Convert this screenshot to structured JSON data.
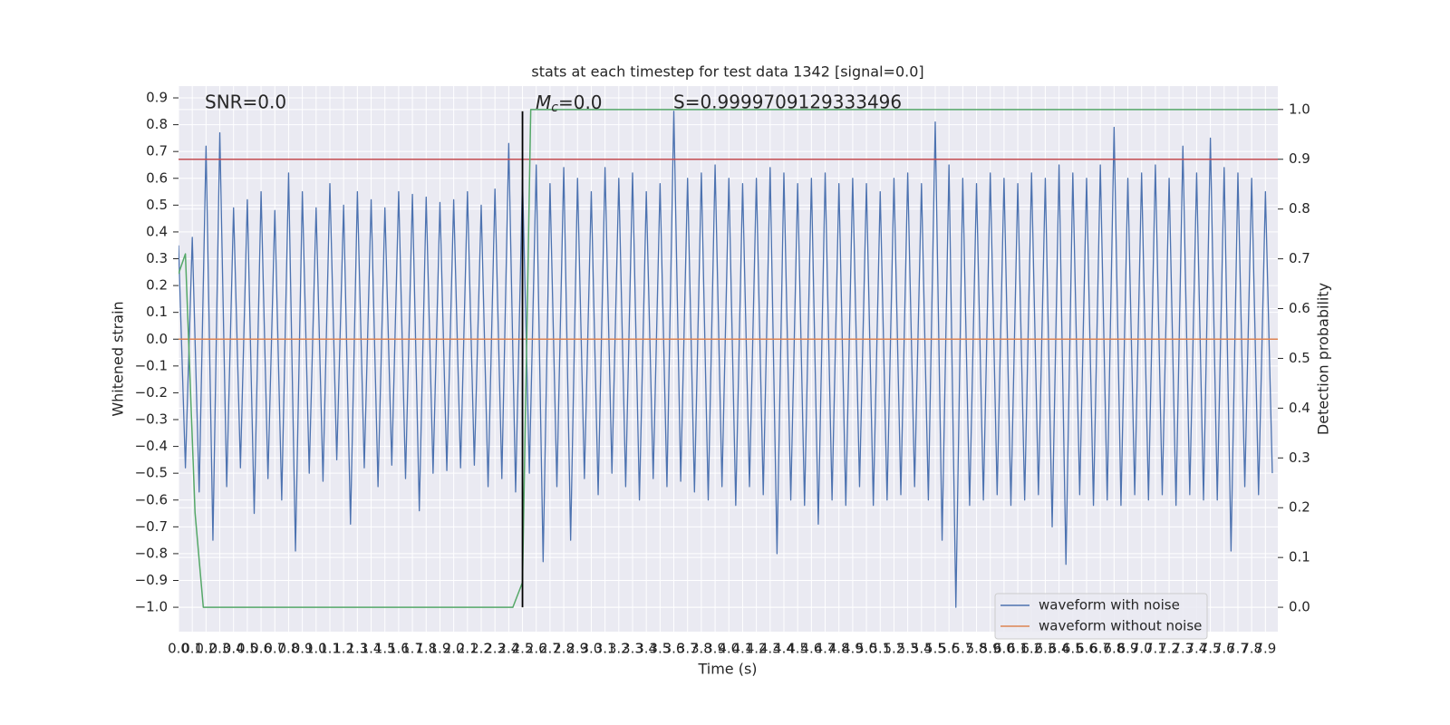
{
  "chart_data": {
    "type": "line",
    "title": "stats at each timestep for test data 1342 [signal=0.0]",
    "xlabel": "Time (s)",
    "ylabel": "Whitened strain",
    "y2label": "Detection probability",
    "annotations": {
      "snr": "SNR=0.0",
      "mc": {
        "symbol": "M",
        "subscript": "c",
        "text": "=0.0"
      },
      "s": "S=0.9999709129333496"
    },
    "xlim": [
      0,
      7.99
    ],
    "ylim": [
      -1.091,
      0.944
    ],
    "y2lim": [
      -0.049,
      1.047
    ],
    "grid": true,
    "legend": "lower right",
    "background": "#eaeaf2",
    "xticks": [
      {
        "value": 0,
        "label": "0.0"
      },
      {
        "value": 0.1,
        "label": "0.1"
      },
      {
        "value": 0.2,
        "label": "0.2"
      },
      {
        "value": 0.3,
        "label": "0.3"
      },
      {
        "value": 0.4,
        "label": "0.4"
      },
      {
        "value": 0.5,
        "label": "0.5"
      },
      {
        "value": 0.6,
        "label": "0.6"
      },
      {
        "value": 0.7,
        "label": "0.7"
      },
      {
        "value": 0.8,
        "label": "0.8"
      },
      {
        "value": 0.9,
        "label": "0.9"
      },
      {
        "value": 1,
        "label": "1.0"
      },
      {
        "value": 1.1,
        "label": "1.1"
      },
      {
        "value": 1.2,
        "label": "1.2"
      },
      {
        "value": 1.3,
        "label": "1.3"
      },
      {
        "value": 1.4,
        "label": "1.4"
      },
      {
        "value": 1.5,
        "label": "1.5"
      },
      {
        "value": 1.6,
        "label": "1.6"
      },
      {
        "value": 1.7,
        "label": "1.7"
      },
      {
        "value": 1.8,
        "label": "1.8"
      },
      {
        "value": 1.9,
        "label": "1.9"
      },
      {
        "value": 2,
        "label": "2.0"
      },
      {
        "value": 2.1,
        "label": "2.1"
      },
      {
        "value": 2.2,
        "label": "2.2"
      },
      {
        "value": 2.3,
        "label": "2.3"
      },
      {
        "value": 2.4,
        "label": "2.4"
      },
      {
        "value": 2.5,
        "label": "2.5"
      },
      {
        "value": 2.6,
        "label": "2.6"
      },
      {
        "value": 2.7,
        "label": "2.7"
      },
      {
        "value": 2.8,
        "label": "2.8"
      },
      {
        "value": 2.9,
        "label": "2.9"
      },
      {
        "value": 3,
        "label": "3.0"
      },
      {
        "value": 3.1,
        "label": "3.1"
      },
      {
        "value": 3.2,
        "label": "3.2"
      },
      {
        "value": 3.3,
        "label": "3.3"
      },
      {
        "value": 3.4,
        "label": "3.4"
      },
      {
        "value": 3.5,
        "label": "3.5"
      },
      {
        "value": 3.6,
        "label": "3.6"
      },
      {
        "value": 3.7,
        "label": "3.7"
      },
      {
        "value": 3.8,
        "label": "3.8"
      },
      {
        "value": 3.9,
        "label": "3.9"
      },
      {
        "value": 4,
        "label": "4.0"
      },
      {
        "value": 4.1,
        "label": "4.1"
      },
      {
        "value": 4.2,
        "label": "4.2"
      },
      {
        "value": 4.3,
        "label": "4.3"
      },
      {
        "value": 4.4,
        "label": "4.4"
      },
      {
        "value": 4.5,
        "label": "4.5"
      },
      {
        "value": 4.6,
        "label": "4.6"
      },
      {
        "value": 4.7,
        "label": "4.7"
      },
      {
        "value": 4.8,
        "label": "4.8"
      },
      {
        "value": 4.9,
        "label": "4.9"
      },
      {
        "value": 5,
        "label": "5.0"
      },
      {
        "value": 5.1,
        "label": "5.1"
      },
      {
        "value": 5.2,
        "label": "5.2"
      },
      {
        "value": 5.3,
        "label": "5.3"
      },
      {
        "value": 5.4,
        "label": "5.4"
      },
      {
        "value": 5.5,
        "label": "5.5"
      },
      {
        "value": 5.6,
        "label": "5.6"
      },
      {
        "value": 5.7,
        "label": "5.7"
      },
      {
        "value": 5.8,
        "label": "5.8"
      },
      {
        "value": 5.9,
        "label": "5.9"
      },
      {
        "value": 6,
        "label": "6.0"
      },
      {
        "value": 6.1,
        "label": "6.1"
      },
      {
        "value": 6.2,
        "label": "6.2"
      },
      {
        "value": 6.3,
        "label": "6.3"
      },
      {
        "value": 6.4,
        "label": "6.4"
      },
      {
        "value": 6.5,
        "label": "6.5"
      },
      {
        "value": 6.6,
        "label": "6.6"
      },
      {
        "value": 6.7,
        "label": "6.7"
      },
      {
        "value": 6.8,
        "label": "6.8"
      },
      {
        "value": 6.9,
        "label": "6.9"
      },
      {
        "value": 7,
        "label": "7.0"
      },
      {
        "value": 7.1,
        "label": "7.1"
      },
      {
        "value": 7.2,
        "label": "7.2"
      },
      {
        "value": 7.3,
        "label": "7.3"
      },
      {
        "value": 7.4,
        "label": "7.4"
      },
      {
        "value": 7.5,
        "label": "7.5"
      },
      {
        "value": 7.6,
        "label": "7.6"
      },
      {
        "value": 7.7,
        "label": "7.7"
      },
      {
        "value": 7.8,
        "label": "7.8"
      },
      {
        "value": 7.9,
        "label": "7.9"
      }
    ],
    "yticks": [
      {
        "value": -1,
        "label": "−1.0"
      },
      {
        "value": -0.9,
        "label": "−0.9"
      },
      {
        "value": -0.8,
        "label": "−0.8"
      },
      {
        "value": -0.7,
        "label": "−0.7"
      },
      {
        "value": -0.6,
        "label": "−0.6"
      },
      {
        "value": -0.5,
        "label": "−0.5"
      },
      {
        "value": -0.4,
        "label": "−0.4"
      },
      {
        "value": -0.3,
        "label": "−0.3"
      },
      {
        "value": -0.2,
        "label": "−0.2"
      },
      {
        "value": -0.1,
        "label": "−0.1"
      },
      {
        "value": 0,
        "label": "0.0"
      },
      {
        "value": 0.1,
        "label": "0.1"
      },
      {
        "value": 0.2,
        "label": "0.2"
      },
      {
        "value": 0.3,
        "label": "0.3"
      },
      {
        "value": 0.4,
        "label": "0.4"
      },
      {
        "value": 0.5,
        "label": "0.5"
      },
      {
        "value": 0.6,
        "label": "0.6"
      },
      {
        "value": 0.7,
        "label": "0.7"
      },
      {
        "value": 0.8,
        "label": "0.8"
      },
      {
        "value": 0.9,
        "label": "0.9"
      }
    ],
    "y2ticks": [
      {
        "value": 0,
        "label": "0.0"
      },
      {
        "value": 0.1,
        "label": "0.1"
      },
      {
        "value": 0.2,
        "label": "0.2"
      },
      {
        "value": 0.3,
        "label": "0.3"
      },
      {
        "value": 0.4,
        "label": "0.4"
      },
      {
        "value": 0.5,
        "label": "0.5"
      },
      {
        "value": 0.6,
        "label": "0.6"
      },
      {
        "value": 0.7,
        "label": "0.7"
      },
      {
        "value": 0.8,
        "label": "0.8"
      },
      {
        "value": 0.9,
        "label": "0.9"
      },
      {
        "value": 1,
        "label": "1.0"
      }
    ],
    "series": [
      {
        "name": "waveform with noise",
        "color": "#4c72b0",
        "x": [
          0,
          0.05,
          0.1,
          0.15,
          0.2,
          0.25,
          0.3,
          0.35,
          0.4,
          0.45,
          0.5,
          0.55,
          0.6,
          0.65,
          0.7,
          0.75,
          0.8,
          0.85,
          0.9,
          0.95,
          1,
          1.05,
          1.1,
          1.15,
          1.2,
          1.25,
          1.3,
          1.35,
          1.4,
          1.45,
          1.5,
          1.55,
          1.6,
          1.65,
          1.7,
          1.75,
          1.8,
          1.85,
          1.9,
          1.95,
          2,
          2.05,
          2.1,
          2.15,
          2.2,
          2.25,
          2.3,
          2.35,
          2.4,
          2.45,
          2.5,
          2.55,
          2.6,
          2.65,
          2.7,
          2.75,
          2.8,
          2.85,
          2.9,
          2.95,
          3,
          3.05,
          3.1,
          3.15,
          3.2,
          3.25,
          3.3,
          3.35,
          3.4,
          3.45,
          3.5,
          3.55,
          3.6,
          3.65,
          3.7,
          3.75,
          3.8,
          3.85,
          3.9,
          3.95,
          4,
          4.05,
          4.1,
          4.15,
          4.2,
          4.25,
          4.3,
          4.35,
          4.4,
          4.45,
          4.5,
          4.55,
          4.6,
          4.65,
          4.7,
          4.75,
          4.8,
          4.85,
          4.9,
          4.95,
          5,
          5.05,
          5.1,
          5.15,
          5.2,
          5.25,
          5.3,
          5.35,
          5.4,
          5.45,
          5.5,
          5.55,
          5.6,
          5.65,
          5.7,
          5.75,
          5.8,
          5.85,
          5.9,
          5.95,
          6,
          6.05,
          6.1,
          6.15,
          6.2,
          6.25,
          6.3,
          6.35,
          6.4,
          6.45,
          6.5,
          6.55,
          6.6,
          6.65,
          6.7,
          6.75,
          6.8,
          6.85,
          6.9,
          6.95,
          7,
          7.05,
          7.1,
          7.15,
          7.2,
          7.25,
          7.3,
          7.35,
          7.4,
          7.45,
          7.5,
          7.55,
          7.6,
          7.65,
          7.7,
          7.75,
          7.8,
          7.85,
          7.9,
          7.95
        ],
        "values": [
          0.35,
          -0.48,
          0.38,
          -0.57,
          0.72,
          -0.75,
          0.77,
          -0.55,
          0.49,
          -0.48,
          0.52,
          -0.65,
          0.55,
          -0.52,
          0.48,
          -0.6,
          0.62,
          -0.79,
          0.55,
          -0.5,
          0.49,
          -0.53,
          0.58,
          -0.45,
          0.5,
          -0.69,
          0.55,
          -0.48,
          0.52,
          -0.55,
          0.49,
          -0.47,
          0.55,
          -0.52,
          0.54,
          -0.64,
          0.53,
          -0.5,
          0.51,
          -0.49,
          0.52,
          -0.48,
          0.55,
          -0.47,
          0.5,
          -0.55,
          0.56,
          -0.52,
          0.73,
          -0.57,
          0.6,
          -0.5,
          0.65,
          -0.83,
          0.58,
          -0.55,
          0.64,
          -0.75,
          0.6,
          -0.52,
          0.55,
          -0.58,
          0.64,
          -0.5,
          0.6,
          -0.55,
          0.62,
          -0.6,
          0.55,
          -0.52,
          0.58,
          -0.55,
          0.85,
          -0.53,
          0.6,
          -0.57,
          0.62,
          -0.6,
          0.65,
          -0.55,
          0.6,
          -0.62,
          0.58,
          -0.55,
          0.6,
          -0.58,
          0.64,
          -0.8,
          0.62,
          -0.6,
          0.58,
          -0.62,
          0.6,
          -0.69,
          0.62,
          -0.6,
          0.58,
          -0.62,
          0.6,
          -0.55,
          0.58,
          -0.62,
          0.55,
          -0.6,
          0.6,
          -0.58,
          0.62,
          -0.55,
          0.58,
          -0.6,
          0.81,
          -0.75,
          0.65,
          -1.0,
          0.6,
          -0.62,
          0.58,
          -0.6,
          0.62,
          -0.58,
          0.6,
          -0.62,
          0.58,
          -0.6,
          0.62,
          -0.58,
          0.6,
          -0.7,
          0.65,
          -0.84,
          0.62,
          -0.58,
          0.6,
          -0.62,
          0.65,
          -0.6,
          0.79,
          -0.62,
          0.6,
          -0.58,
          0.62,
          -0.6,
          0.65,
          -0.58,
          0.6,
          -0.62,
          0.72,
          -0.58,
          0.62,
          -0.6,
          0.75,
          -0.6,
          0.64,
          -0.79,
          0.62,
          -0.55,
          0.6,
          -0.58,
          0.55,
          -0.5
        ]
      },
      {
        "name": "waveform without noise",
        "color": "#dd8452",
        "x": [
          0,
          7.99
        ],
        "values": [
          0,
          0
        ]
      }
    ],
    "probability": {
      "axis": "y2",
      "color": "#55a868",
      "x": [
        0,
        0.05,
        0.12,
        0.18,
        1.0,
        2.0,
        2.43,
        2.5,
        2.56,
        7.99
      ],
      "values": [
        0.67,
        0.71,
        0.19,
        0.0,
        0.0,
        0.0,
        0.0,
        0.05,
        1.0,
        1.0
      ]
    },
    "threshold": {
      "axis": "y2",
      "value": 0.9,
      "color": "#c44e52"
    },
    "vline": {
      "x": 2.5,
      "y": [
        -1.0,
        0.85
      ],
      "color": "#000000"
    }
  }
}
